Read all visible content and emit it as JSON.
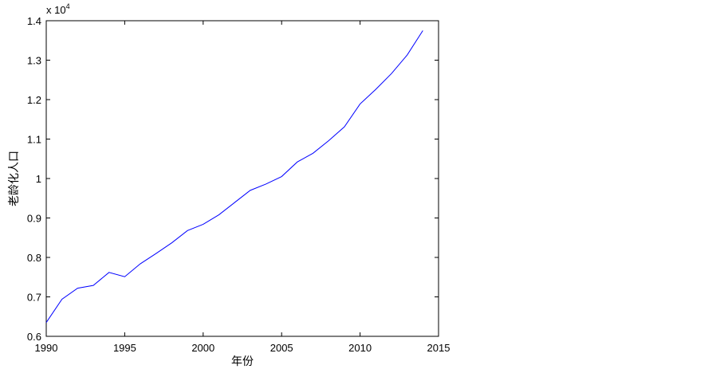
{
  "chart_data": {
    "type": "line",
    "x_label": "年份",
    "y_label": "老龄化人口",
    "y_multiplier": {
      "base": "x 10",
      "exponent": "4"
    },
    "x": [
      1990,
      1991,
      1992,
      1993,
      1994,
      1995,
      1996,
      1997,
      1998,
      1999,
      2000,
      2001,
      2002,
      2003,
      2004,
      2005,
      2006,
      2007,
      2008,
      2009,
      2010,
      2011,
      2012,
      2013,
      2014
    ],
    "series": [
      {
        "color": "#0000ff",
        "values": [
          0.635,
          0.694,
          0.722,
          0.729,
          0.762,
          0.751,
          0.784,
          0.81,
          0.837,
          0.868,
          0.884,
          0.908,
          0.939,
          0.97,
          0.986,
          1.005,
          1.042,
          1.064,
          1.096,
          1.131,
          1.189,
          1.226,
          1.266,
          1.313,
          1.375
        ]
      }
    ],
    "xlim": [
      1990,
      2015
    ],
    "xticks": [
      1990,
      1995,
      2000,
      2005,
      2010,
      2015
    ],
    "ylim": [
      0.6,
      1.4
    ],
    "yticks": [
      0.6,
      0.7,
      0.8,
      0.9,
      1,
      1.1,
      1.2,
      1.3,
      1.4
    ],
    "grid": false
  }
}
